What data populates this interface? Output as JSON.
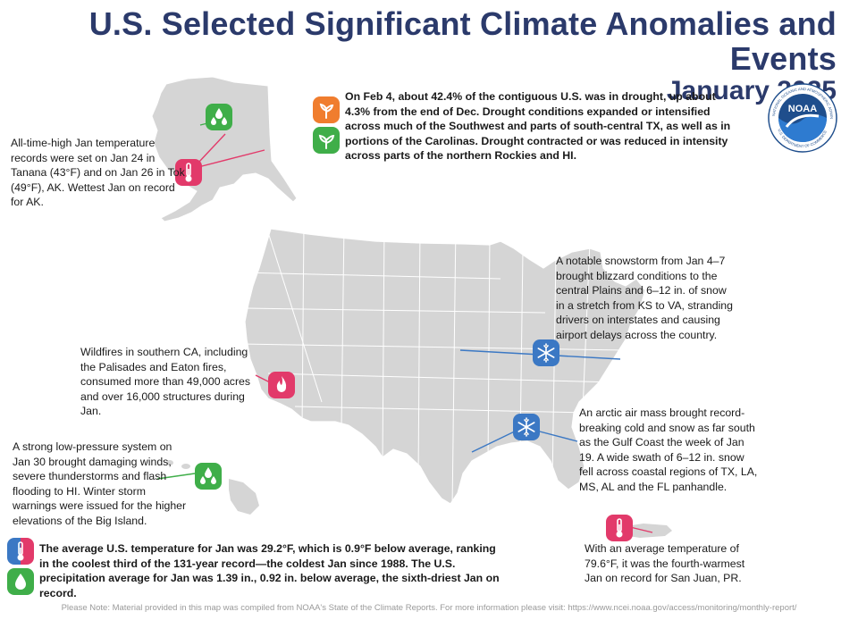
{
  "header": {
    "title": "U.S. Selected Significant Climate Anomalies and Events",
    "subtitle": "January 2025"
  },
  "logo": {
    "label": "NOAA",
    "ring_text": "NATIONAL OCEANIC AND ATMOSPHERIC ADMINISTRATION",
    "ring_text_bottom": "U.S. DEPARTMENT OF COMMERCE"
  },
  "annotations": {
    "drought": "On Feb 4, about 42.4% of the contiguous U.S. was in drought, up about 4.3% from the end of Dec. Drought conditions expanded or intensified across much of the Southwest and parts of south-central TX, as well as in portions of the Carolinas. Drought contracted or was reduced in intensity across parts of the northern Rockies and HI.",
    "alaska": "All-time-high Jan temperature records were set on Jan 24 in Tanana (43°F) and on Jan 26 in Tok (49°F), AK. Wettest Jan on record for AK.",
    "snowstorm": "A notable snowstorm from Jan 4–7 brought blizzard conditions to the central Plains and 6–12 in. of snow in a stretch from KS to VA, stranding drivers on interstates and causing airport delays across the country.",
    "wildfires": "Wildfires in southern CA, including the Palisades and Eaton fires, consumed more than 49,000 acres and over 16,000 structures during Jan.",
    "arctic": "An arctic air mass brought record-breaking cold and snow as far south as the Gulf Coast the week of Jan 19. A wide swath of 6–12 in. snow fell across coastal regions of TX, LA, MS, AL and the FL panhandle.",
    "hawaii": "A strong low-pressure system on Jan 30 brought damaging winds, severe thunderstorms and flash flooding to HI. Winter storm warnings were issued for the higher elevations of the Big Island.",
    "national": "The average U.S. temperature for Jan was 29.2°F, which is 0.9°F below average, ranking in the coolest third of the 131-year record—the coldest Jan since 1988. The U.S. precipitation average for Jan was 1.39 in., 0.92 in. below average, the sixth-driest Jan on record.",
    "puerto_rico": "With an average temperature of 79.6°F, it was the fourth-warmest Jan on record for San Juan, PR."
  },
  "icons": {
    "drought": "drought-plant-icon",
    "wet": "precipitation-drops-icon",
    "temperature": "thermometer-icon",
    "fire": "fire-icon",
    "snow": "snowflake-icon"
  },
  "colors": {
    "title": "#2b3a6b",
    "map_fill": "#d5d5d5",
    "wet_icon": "#3fae49",
    "temp_icon": "#e23a6a",
    "fire_icon": "#e23a6a",
    "snow_icon": "#3b78c4",
    "drought_icon": "#f07d2e",
    "line_blue": "#3b78c4",
    "line_pink": "#e23a6a",
    "line_green": "#3fae49"
  },
  "footer": "Please Note: Material provided in this map was compiled from NOAA's State of the Climate Reports. For more information please visit: https://www.ncei.noaa.gov/access/monitoring/monthly-report/"
}
